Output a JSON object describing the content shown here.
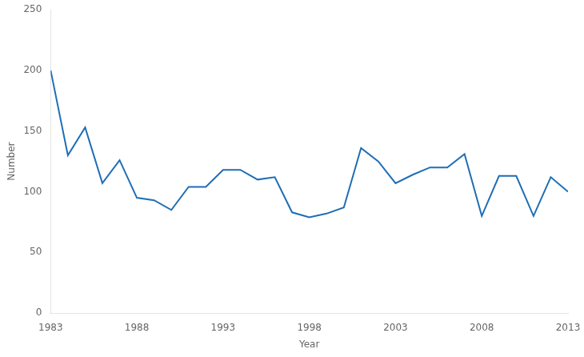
{
  "chart_data": {
    "type": "line",
    "x": [
      1983,
      1984,
      1985,
      1986,
      1987,
      1988,
      1989,
      1990,
      1991,
      1992,
      1993,
      1994,
      1995,
      1996,
      1997,
      1998,
      1999,
      2000,
      2001,
      2002,
      2003,
      2004,
      2005,
      2006,
      2007,
      2008,
      2009,
      2010,
      2011,
      2012,
      2013
    ],
    "values": [
      200,
      130,
      153,
      107,
      126,
      95,
      93,
      85,
      104,
      104,
      118,
      118,
      110,
      112,
      83,
      79,
      82,
      87,
      136,
      125,
      107,
      114,
      120,
      120,
      131,
      80,
      113,
      113,
      80,
      112,
      100
    ],
    "color": "#1f6eb5",
    "xlim": [
      1983,
      2013
    ],
    "ylim": [
      0,
      250
    ],
    "xticks": [
      1983,
      1988,
      1993,
      1998,
      2003,
      2008,
      2013
    ],
    "yticks": [
      0,
      50,
      100,
      150,
      200,
      250
    ],
    "xlabel": "Year",
    "ylabel": "Number",
    "grid": false
  }
}
